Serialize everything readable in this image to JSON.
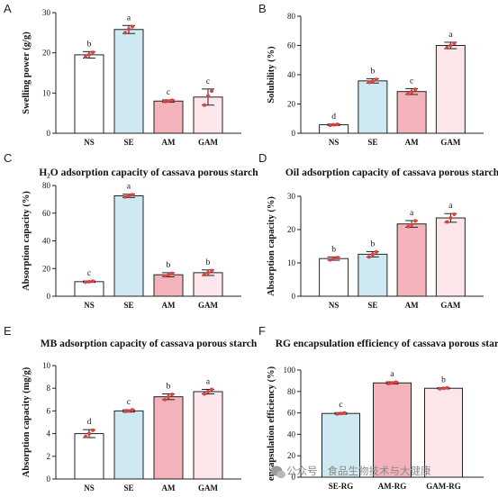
{
  "colors": {
    "NS": "#ffffff",
    "SE": "#cfe9f3",
    "AM": "#f4b3bb",
    "GAM": "#fde6ea",
    "SE-RG": "#cfe9f3",
    "AM-RG": "#f4b3bb",
    "GAM-RG": "#fde6ea",
    "point": "#e0413f",
    "axis": "#222222"
  },
  "watermark": {
    "text": "公众号 · 食品生物技术与大健康",
    "icon": "wechat-icon"
  },
  "chart_data": [
    {
      "panel": "A",
      "type": "bar",
      "title": "",
      "ylabel": "Swelling power (g/g)",
      "xlabel": "",
      "ylim": [
        0,
        30
      ],
      "yticks": [
        0,
        10,
        20,
        30
      ],
      "categories": [
        "NS",
        "SE",
        "AM",
        "GAM"
      ],
      "values": [
        19.5,
        25.8,
        8.0,
        9.0
      ],
      "errors": [
        0.8,
        1.0,
        0.3,
        2.0
      ],
      "points": [
        [
          19.0,
          19.6,
          20.1
        ],
        [
          25.0,
          25.9,
          26.5
        ],
        [
          7.9,
          8.0,
          8.2
        ],
        [
          7.0,
          9.3,
          10.5
        ]
      ],
      "letters": [
        "b",
        "a",
        "c",
        "c"
      ]
    },
    {
      "panel": "B",
      "type": "bar",
      "title": "",
      "ylabel": "Solubility (%)",
      "xlabel": "",
      "ylim": [
        0,
        80
      ],
      "yticks": [
        0,
        20,
        40,
        60,
        80
      ],
      "categories": [
        "NS",
        "SE",
        "AM",
        "GAM"
      ],
      "values": [
        5.8,
        35.8,
        28.5,
        60.0
      ],
      "errors": [
        0.5,
        1.5,
        2.0,
        2.2
      ],
      "points": [
        [
          5.5,
          5.8,
          6.1
        ],
        [
          34.8,
          35.5,
          36.8
        ],
        [
          27.0,
          28.3,
          30.0
        ],
        [
          58.5,
          60.0,
          61.5
        ]
      ],
      "letters": [
        "d",
        "b",
        "c",
        "a"
      ]
    },
    {
      "panel": "C",
      "type": "bar",
      "title": "H₂O adsorption capacity of cassava porous starch",
      "ylabel": "Absorption capacity (%)",
      "xlabel": "",
      "ylim": [
        0,
        80
      ],
      "yticks": [
        0,
        20,
        40,
        60,
        80
      ],
      "categories": [
        "NS",
        "SE",
        "AM",
        "GAM"
      ],
      "values": [
        10.5,
        72.5,
        15.5,
        17.0
      ],
      "errors": [
        0.5,
        1.2,
        1.5,
        2.0
      ],
      "points": [
        [
          10.2,
          10.5,
          10.9
        ],
        [
          71.8,
          72.5,
          73.3
        ],
        [
          14.7,
          15.5,
          16.5
        ],
        [
          15.5,
          17.0,
          18.5
        ]
      ],
      "letters": [
        "c",
        "a",
        "b",
        "b"
      ]
    },
    {
      "panel": "D",
      "type": "bar",
      "title": "Oil adsorption capacity of cassava porous starch",
      "ylabel": "Absorption capacity (%)",
      "xlabel": "",
      "ylim": [
        0,
        30
      ],
      "yticks": [
        0,
        10,
        20,
        30
      ],
      "categories": [
        "NS",
        "SE",
        "AM",
        "GAM"
      ],
      "values": [
        11.3,
        12.6,
        21.7,
        23.5
      ],
      "errors": [
        0.5,
        0.8,
        1.0,
        1.3
      ],
      "points": [
        [
          10.9,
          11.3,
          11.6
        ],
        [
          11.8,
          12.6,
          13.3
        ],
        [
          20.9,
          21.5,
          22.6
        ],
        [
          22.3,
          23.5,
          24.6
        ]
      ],
      "letters": [
        "b",
        "b",
        "a",
        "a"
      ]
    },
    {
      "panel": "E",
      "type": "bar",
      "title": "MB adsorption capacity of cassava porous starch",
      "ylabel": "Absorption capacity (mg/g)",
      "xlabel": "",
      "ylim": [
        0,
        10
      ],
      "yticks": [
        0,
        2,
        4,
        6,
        8,
        10
      ],
      "categories": [
        "NS",
        "SE",
        "AM",
        "GAM"
      ],
      "values": [
        4.0,
        6.0,
        7.25,
        7.7
      ],
      "errors": [
        0.35,
        0.1,
        0.25,
        0.2
      ],
      "points": [
        [
          3.75,
          4.0,
          4.3
        ],
        [
          5.95,
          6.0,
          6.1
        ],
        [
          7.0,
          7.25,
          7.45
        ],
        [
          7.5,
          7.7,
          7.9
        ]
      ],
      "letters": [
        "d",
        "c",
        "b",
        "a"
      ]
    },
    {
      "panel": "F",
      "type": "bar",
      "title": "RG encapsulation efficiency of cassava porous starch",
      "ylabel": "encapsulation efficiency (%)",
      "xlabel": "",
      "ylim": [
        0,
        100
      ],
      "yticks": [
        0,
        20,
        40,
        60,
        80,
        100
      ],
      "categories": [
        "SE-RG",
        "AM-RG",
        "GAM-RG"
      ],
      "values": [
        59.5,
        88.0,
        83.0
      ],
      "errors": [
        0.8,
        1.0,
        0.6
      ],
      "points": [
        [
          59.0,
          59.5,
          60.0
        ],
        [
          87.3,
          88.0,
          88.7
        ],
        [
          82.6,
          83.0,
          83.4
        ]
      ],
      "letters": [
        "c",
        "a",
        "b"
      ]
    }
  ]
}
